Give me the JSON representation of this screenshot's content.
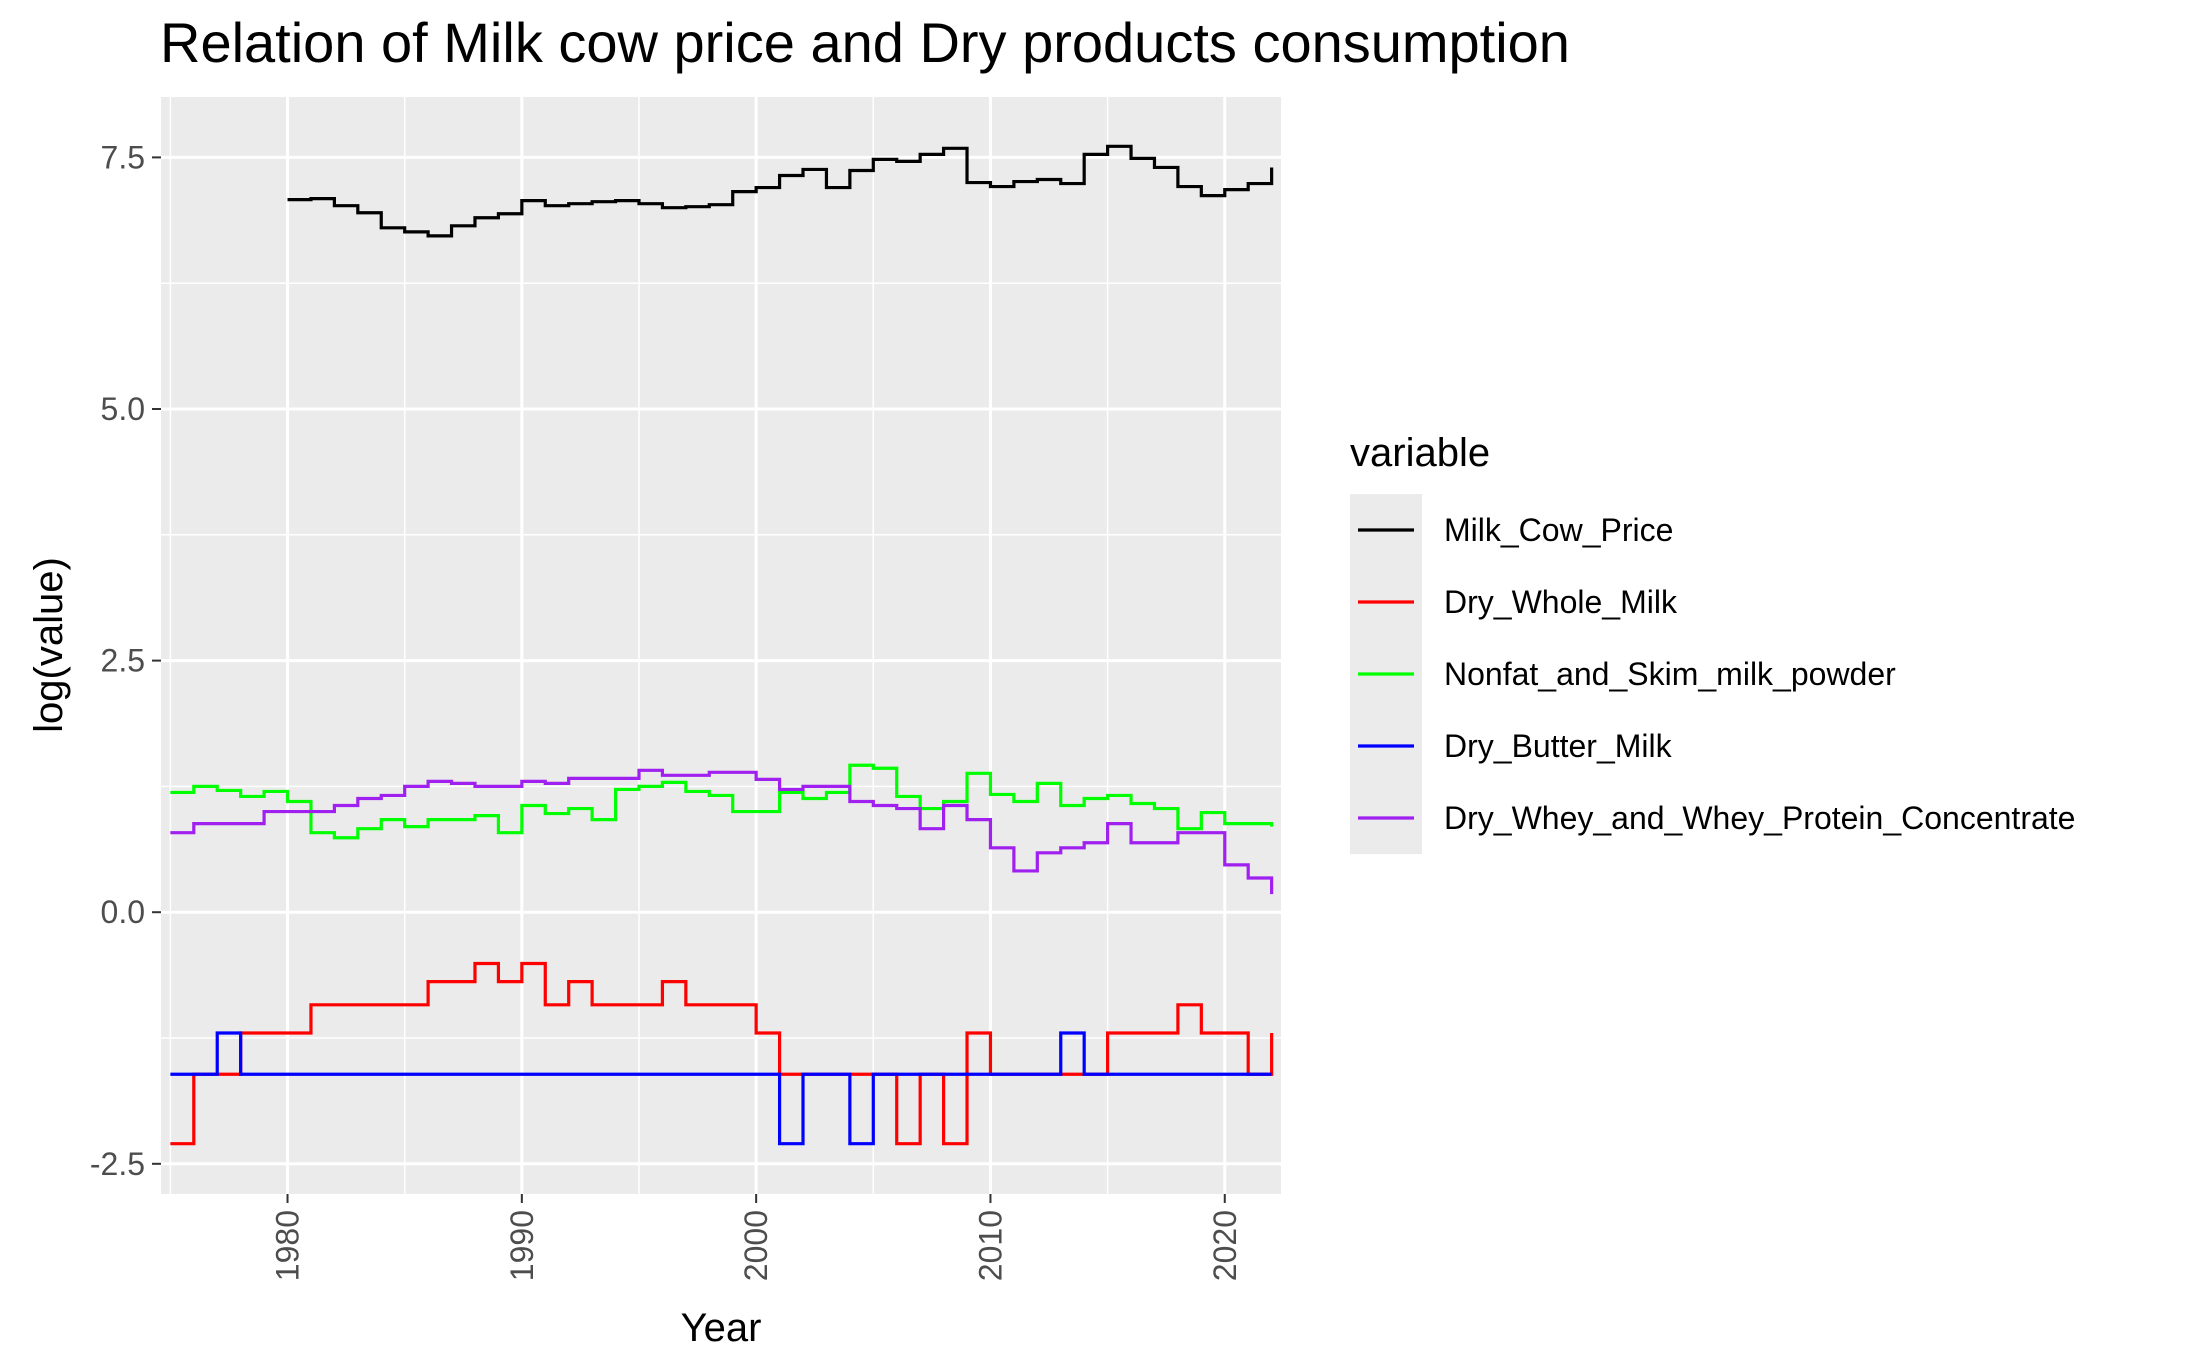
{
  "chart_data": {
    "type": "line",
    "step": "hv",
    "title": "Relation of Milk cow price and Dry products consumption",
    "xlabel": "Year",
    "ylabel": "log(value)",
    "xlim": [
      1974.6,
      2022.4
    ],
    "ylim": [
      -2.8,
      8.1
    ],
    "x_ticks": [
      1980,
      1990,
      2000,
      2010,
      2020
    ],
    "y_ticks": [
      -2.5,
      0.0,
      2.5,
      5.0,
      7.5
    ],
    "y_tick_labels": [
      "-2.5",
      "0.0",
      "2.5",
      "5.0",
      "7.5"
    ],
    "grid": true,
    "legend_title": "variable",
    "legend_position": "right",
    "series": [
      {
        "name": "Milk_Cow_Price",
        "color": "#000000",
        "x": [
          1980,
          1981,
          1982,
          1983,
          1984,
          1985,
          1986,
          1987,
          1988,
          1989,
          1990,
          1991,
          1992,
          1993,
          1994,
          1995,
          1996,
          1997,
          1998,
          1999,
          2000,
          2001,
          2002,
          2003,
          2004,
          2005,
          2006,
          2007,
          2008,
          2009,
          2010,
          2011,
          2012,
          2013,
          2014,
          2015,
          2016,
          2017,
          2018,
          2019,
          2020,
          2021,
          2022
        ],
        "values": [
          7.08,
          7.09,
          7.02,
          6.95,
          6.8,
          6.76,
          6.72,
          6.82,
          6.9,
          6.94,
          7.07,
          7.02,
          7.04,
          7.06,
          7.07,
          7.04,
          7.0,
          7.01,
          7.03,
          7.16,
          7.2,
          7.32,
          7.38,
          7.2,
          7.37,
          7.48,
          7.46,
          7.53,
          7.59,
          7.25,
          7.21,
          7.26,
          7.28,
          7.24,
          7.53,
          7.61,
          7.49,
          7.4,
          7.21,
          7.12,
          7.18,
          7.24,
          7.4
        ]
      },
      {
        "name": "Dry_Whole_Milk",
        "color": "#ff0000",
        "x": [
          1975,
          1976,
          1977,
          1978,
          1979,
          1980,
          1981,
          1982,
          1983,
          1984,
          1985,
          1986,
          1987,
          1988,
          1989,
          1990,
          1991,
          1992,
          1993,
          1994,
          1995,
          1996,
          1997,
          1998,
          1999,
          2000,
          2001,
          2002,
          2003,
          2004,
          2005,
          2006,
          2007,
          2008,
          2009,
          2010,
          2011,
          2012,
          2013,
          2014,
          2015,
          2016,
          2017,
          2018,
          2019,
          2020,
          2021,
          2022
        ],
        "values": [
          -2.3,
          -1.61,
          -1.61,
          -1.2,
          -1.2,
          -1.2,
          -0.92,
          -0.92,
          -0.92,
          -0.92,
          -0.92,
          -0.69,
          -0.69,
          -0.51,
          -0.69,
          -0.51,
          -0.92,
          -0.69,
          -0.92,
          -0.92,
          -0.92,
          -0.69,
          -0.92,
          -0.92,
          -0.92,
          -1.2,
          -1.61,
          -1.61,
          -1.61,
          -1.61,
          -1.61,
          -2.3,
          -1.61,
          -2.3,
          -1.2,
          -1.61,
          -1.61,
          -1.61,
          -1.61,
          -1.61,
          -1.2,
          -1.2,
          -1.2,
          -0.92,
          -1.2,
          -1.2,
          -1.61,
          -1.2
        ]
      },
      {
        "name": "Nonfat_and_Skim_milk_powder",
        "color": "#00ff00",
        "x": [
          1975,
          1976,
          1977,
          1978,
          1979,
          1980,
          1981,
          1982,
          1983,
          1984,
          1985,
          1986,
          1987,
          1988,
          1989,
          1990,
          1991,
          1992,
          1993,
          1994,
          1995,
          1996,
          1997,
          1998,
          1999,
          2000,
          2001,
          2002,
          2003,
          2004,
          2005,
          2006,
          2007,
          2008,
          2009,
          2010,
          2011,
          2012,
          2013,
          2014,
          2015,
          2016,
          2017,
          2018,
          2019,
          2020,
          2021,
          2022
        ],
        "values": [
          1.19,
          1.25,
          1.21,
          1.15,
          1.2,
          1.1,
          0.79,
          0.74,
          0.83,
          0.92,
          0.85,
          0.92,
          0.92,
          0.96,
          0.79,
          1.06,
          0.98,
          1.03,
          0.92,
          1.22,
          1.25,
          1.29,
          1.2,
          1.16,
          1.0,
          1.0,
          1.19,
          1.13,
          1.19,
          1.46,
          1.43,
          1.15,
          1.03,
          1.1,
          1.38,
          1.17,
          1.1,
          1.28,
          1.06,
          1.13,
          1.16,
          1.08,
          1.03,
          0.83,
          0.99,
          0.88,
          0.88,
          0.85
        ]
      },
      {
        "name": "Dry_Butter_Milk",
        "color": "#0000ff",
        "x": [
          1975,
          1976,
          1977,
          1978,
          1979,
          1980,
          1981,
          1982,
          1983,
          1984,
          1985,
          1986,
          1987,
          1988,
          1989,
          1990,
          1991,
          1992,
          1993,
          1994,
          1995,
          1996,
          1997,
          1998,
          1999,
          2000,
          2001,
          2002,
          2003,
          2004,
          2005,
          2006,
          2007,
          2008,
          2009,
          2010,
          2011,
          2012,
          2013,
          2014,
          2015,
          2016,
          2017,
          2018,
          2019,
          2020,
          2021,
          2022
        ],
        "values": [
          -1.61,
          -1.61,
          -1.2,
          -1.61,
          -1.61,
          -1.61,
          -1.61,
          -1.61,
          -1.61,
          -1.61,
          -1.61,
          -1.61,
          -1.61,
          -1.61,
          -1.61,
          -1.61,
          -1.61,
          -1.61,
          -1.61,
          -1.61,
          -1.61,
          -1.61,
          -1.61,
          -1.61,
          -1.61,
          -1.61,
          -2.3,
          -1.61,
          -1.61,
          -2.3,
          -1.61,
          -1.61,
          -1.61,
          -1.61,
          -1.61,
          -1.61,
          -1.61,
          -1.61,
          -1.2,
          -1.61,
          -1.61,
          -1.61,
          -1.61,
          -1.61,
          -1.61,
          -1.61,
          -1.61,
          -1.61
        ]
      },
      {
        "name": "Dry_Whey_and_Whey_Protein_Concentrate",
        "color": "#a020f0",
        "x": [
          1975,
          1976,
          1977,
          1978,
          1979,
          1980,
          1981,
          1982,
          1983,
          1984,
          1985,
          1986,
          1987,
          1988,
          1989,
          1990,
          1991,
          1992,
          1993,
          1994,
          1995,
          1996,
          1997,
          1998,
          1999,
          2000,
          2001,
          2002,
          2003,
          2004,
          2005,
          2006,
          2007,
          2008,
          2009,
          2010,
          2011,
          2012,
          2013,
          2014,
          2015,
          2016,
          2017,
          2018,
          2019,
          2020,
          2021,
          2022
        ],
        "values": [
          0.79,
          0.88,
          0.88,
          0.88,
          1.0,
          1.0,
          1.0,
          1.06,
          1.13,
          1.16,
          1.25,
          1.3,
          1.28,
          1.25,
          1.25,
          1.3,
          1.28,
          1.33,
          1.33,
          1.33,
          1.41,
          1.36,
          1.36,
          1.39,
          1.39,
          1.32,
          1.22,
          1.25,
          1.25,
          1.1,
          1.06,
          1.03,
          0.83,
          1.06,
          0.92,
          0.64,
          0.41,
          0.59,
          0.64,
          0.69,
          0.88,
          0.69,
          0.69,
          0.79,
          0.79,
          0.47,
          0.34,
          0.18
        ]
      }
    ]
  }
}
